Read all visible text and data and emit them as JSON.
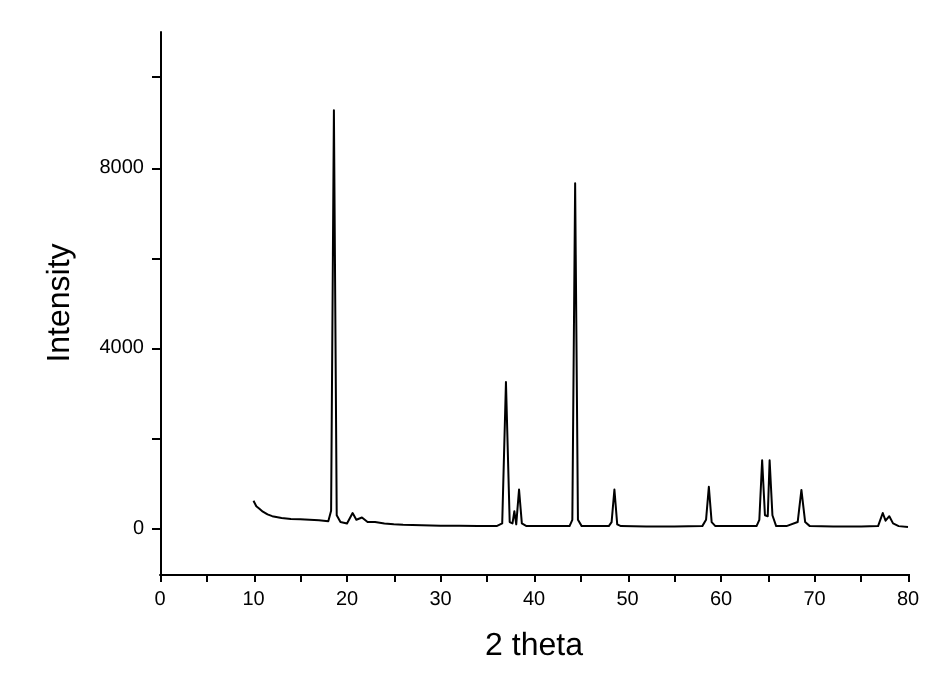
{
  "chart_data": {
    "type": "line",
    "xlabel": "2 theta",
    "ylabel": "Intensity",
    "xlim": [
      0,
      80
    ],
    "xticks": [
      0,
      {
        "value": 5,
        "label": null
      },
      10,
      {
        "value": 15,
        "label": null
      },
      20,
      {
        "value": 25,
        "label": null
      },
      30,
      {
        "value": 35,
        "label": null
      },
      40,
      {
        "value": 45,
        "label": null
      },
      50,
      {
        "value": 55,
        "label": null
      },
      60,
      {
        "value": 65,
        "label": null
      },
      70,
      {
        "value": 75,
        "label": null
      },
      80
    ],
    "ylim": [
      -1000,
      11000
    ],
    "yticks": [
      0,
      {
        "value": 2000,
        "label": null
      },
      4000,
      {
        "value": 6000,
        "label": null
      },
      8000,
      {
        "value": 10000,
        "label": null
      }
    ],
    "grid": false,
    "marker": "none",
    "line_style": "solid",
    "series": [
      {
        "color": "#000000",
        "x": [
          10,
          10.3,
          10.6,
          11,
          11.5,
          12,
          13,
          14,
          15,
          16,
          17,
          18,
          18.3,
          18.6,
          18.9,
          19.3,
          20,
          20.6,
          21,
          21.6,
          22.2,
          23,
          24,
          25,
          26,
          28,
          30,
          32,
          34,
          36,
          36.6,
          37,
          37.4,
          37.7,
          37.9,
          38.1,
          38.4,
          38.7,
          39.2,
          40,
          42,
          43.8,
          44.1,
          44.4,
          44.7,
          45.1,
          46,
          48,
          48.3,
          48.6,
          48.9,
          49.3,
          52,
          55,
          58,
          58.4,
          58.7,
          59,
          59.4,
          62,
          63.8,
          64.1,
          64.4,
          64.7,
          65,
          65.2,
          65.5,
          65.9,
          67,
          68.2,
          68.6,
          69,
          69.5,
          72,
          75,
          76.8,
          77.3,
          77.6,
          78,
          78.4,
          79,
          80
        ],
        "values": [
          620,
          500,
          450,
          380,
          320,
          280,
          240,
          220,
          210,
          200,
          190,
          170,
          400,
          9270,
          300,
          150,
          120,
          350,
          200,
          250,
          150,
          150,
          120,
          100,
          90,
          80,
          70,
          70,
          60,
          60,
          120,
          3250,
          150,
          120,
          390,
          100,
          870,
          120,
          60,
          60,
          60,
          60,
          200,
          7650,
          200,
          60,
          60,
          60,
          150,
          870,
          100,
          60,
          50,
          50,
          60,
          200,
          930,
          150,
          60,
          60,
          60,
          200,
          1520,
          300,
          280,
          1520,
          300,
          60,
          60,
          150,
          860,
          150,
          60,
          50,
          50,
          60,
          350,
          180,
          280,
          120,
          60,
          40
        ]
      }
    ]
  }
}
